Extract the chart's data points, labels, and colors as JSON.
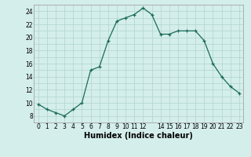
{
  "x": [
    0,
    1,
    2,
    3,
    4,
    5,
    6,
    7,
    8,
    9,
    10,
    11,
    12,
    13,
    14,
    15,
    16,
    17,
    18,
    19,
    20,
    21,
    22,
    23
  ],
  "y": [
    9.8,
    9.0,
    8.5,
    8.0,
    9.0,
    10.0,
    15.0,
    15.5,
    19.5,
    22.5,
    23.0,
    23.5,
    24.5,
    23.5,
    20.5,
    20.5,
    21.0,
    21.0,
    21.0,
    19.5,
    16.0,
    14.0,
    12.5,
    11.5
  ],
  "xlabel": "Humidex (Indice chaleur)",
  "line_color": "#1a6b5a",
  "marker": "+",
  "bg_color": "#d4eeeb",
  "grid_color": "#b0d4cf",
  "ylim": [
    7,
    25
  ],
  "xlim": [
    -0.5,
    23.5
  ],
  "yticks": [
    8,
    10,
    12,
    14,
    16,
    18,
    20,
    22,
    24
  ],
  "xticks": [
    0,
    1,
    2,
    3,
    4,
    5,
    6,
    7,
    8,
    9,
    10,
    11,
    12,
    14,
    15,
    16,
    17,
    18,
    19,
    20,
    21,
    22,
    23
  ],
  "tick_fontsize": 5.5,
  "xlabel_fontsize": 7
}
